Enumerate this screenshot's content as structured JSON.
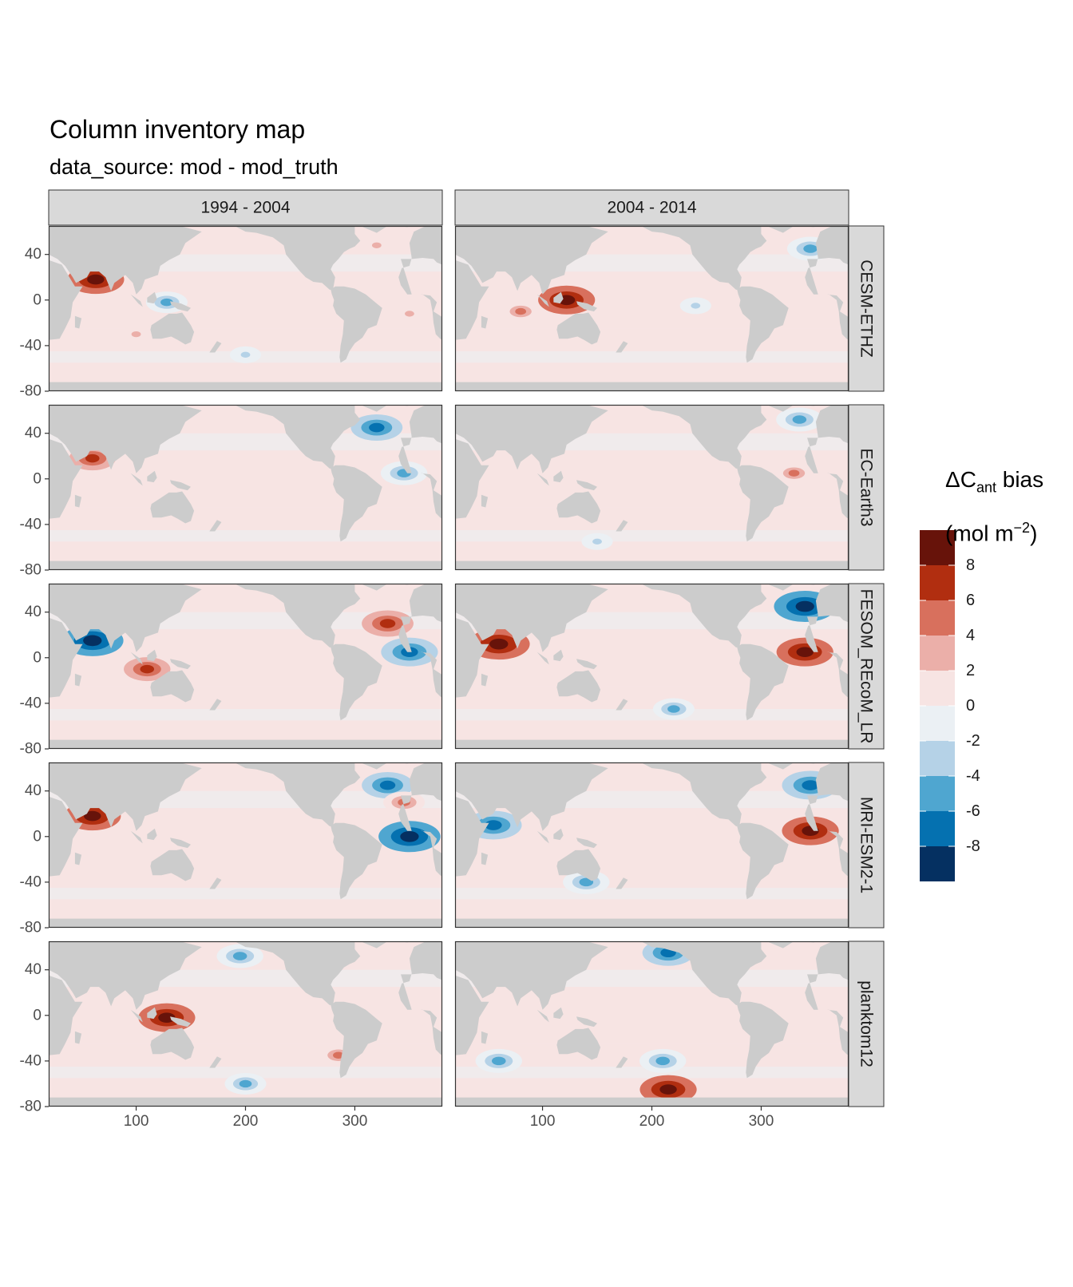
{
  "title": "Column inventory map",
  "subtitle": "data_source: mod - mod_truth",
  "columns": [
    "1994 - 2004",
    "2004 - 2014"
  ],
  "rows": [
    "CESM-ETHZ",
    "EC-Earth3",
    "FESOM_REcoM_LR",
    "MRI-ESM2-1",
    "planktom12"
  ],
  "colors": {
    "land": "#cccccc",
    "strip": "#d9d9d9",
    "scale": [
      "#053061",
      "#0571b0",
      "#4fa6d0",
      "#b5d2e7",
      "#ebf0f4",
      "#f7e4e3",
      "#ebafa9",
      "#d8705d",
      "#b12e10",
      "#67130a"
    ]
  },
  "legend": {
    "title_parts": [
      "ΔC",
      "ant",
      " bias",
      "(mol m",
      "−2",
      ")"
    ],
    "breaks": [
      -10,
      -8,
      -6,
      -4,
      -2,
      0,
      2,
      4,
      6,
      8,
      10
    ],
    "labels": [
      "8",
      "6",
      "4",
      "2",
      "0",
      "-2",
      "-4",
      "-6",
      "-8"
    ]
  },
  "chart_data": {
    "type": "heatmap",
    "title": "Column inventory map",
    "subtitle": "data_source: mod - mod_truth",
    "facet_cols": [
      "1994 - 2004",
      "2004 - 2014"
    ],
    "facet_rows": [
      "CESM-ETHZ",
      "EC-Earth3",
      "FESOM_REcoM_LR",
      "MRI-ESM2-1",
      "planktom12"
    ],
    "x_ticks": [
      100,
      200,
      300
    ],
    "y_ticks": [
      40,
      0,
      -40,
      -80
    ],
    "xlim": [
      20,
      380
    ],
    "ylim": [
      -80,
      65
    ],
    "value_range": [
      -10,
      10
    ],
    "hotspots": [
      {
        "row": "CESM-ETHZ",
        "col": "1994 - 2004",
        "lon": 63,
        "lat": 18,
        "value": 8
      },
      {
        "row": "CESM-ETHZ",
        "col": "1994 - 2004",
        "lon": 100,
        "lat": -30,
        "value": 3
      },
      {
        "row": "CESM-ETHZ",
        "col": "1994 - 2004",
        "lon": 128,
        "lat": -2,
        "value": -5
      },
      {
        "row": "CESM-ETHZ",
        "col": "1994 - 2004",
        "lon": 200,
        "lat": -48,
        "value": -3
      },
      {
        "row": "CESM-ETHZ",
        "col": "1994 - 2004",
        "lon": 320,
        "lat": 48,
        "value": 3
      },
      {
        "row": "CESM-ETHZ",
        "col": "1994 - 2004",
        "lon": 350,
        "lat": -12,
        "value": 3
      },
      {
        "row": "CESM-ETHZ",
        "col": "2004 - 2014",
        "lon": 80,
        "lat": -10,
        "value": 4
      },
      {
        "row": "CESM-ETHZ",
        "col": "2004 - 2014",
        "lon": 122,
        "lat": 0,
        "value": 8
      },
      {
        "row": "CESM-ETHZ",
        "col": "2004 - 2014",
        "lon": 345,
        "lat": 45,
        "value": -6
      },
      {
        "row": "CESM-ETHZ",
        "col": "2004 - 2014",
        "lon": 240,
        "lat": -5,
        "value": -3
      },
      {
        "row": "EC-Earth3",
        "col": "1994 - 2004",
        "lon": 60,
        "lat": 18,
        "value": 6
      },
      {
        "row": "EC-Earth3",
        "col": "1994 - 2004",
        "lon": 320,
        "lat": 45,
        "value": -7
      },
      {
        "row": "EC-Earth3",
        "col": "1994 - 2004",
        "lon": 345,
        "lat": 5,
        "value": -6
      },
      {
        "row": "EC-Earth3",
        "col": "2004 - 2014",
        "lon": 335,
        "lat": 52,
        "value": -6
      },
      {
        "row": "EC-Earth3",
        "col": "2004 - 2014",
        "lon": 330,
        "lat": 5,
        "value": 4
      },
      {
        "row": "EC-Earth3",
        "col": "2004 - 2014",
        "lon": 150,
        "lat": -55,
        "value": -3
      },
      {
        "row": "FESOM_REcoM_LR",
        "col": "1994 - 2004",
        "lon": 60,
        "lat": 15,
        "value": -9
      },
      {
        "row": "FESOM_REcoM_LR",
        "col": "1994 - 2004",
        "lon": 110,
        "lat": -10,
        "value": 6
      },
      {
        "row": "FESOM_REcoM_LR",
        "col": "1994 - 2004",
        "lon": 330,
        "lat": 30,
        "value": 7
      },
      {
        "row": "FESOM_REcoM_LR",
        "col": "1994 - 2004",
        "lon": 350,
        "lat": 5,
        "value": -8
      },
      {
        "row": "FESOM_REcoM_LR",
        "col": "2004 - 2014",
        "lon": 60,
        "lat": 12,
        "value": 9
      },
      {
        "row": "FESOM_REcoM_LR",
        "col": "2004 - 2014",
        "lon": 340,
        "lat": 45,
        "value": -9
      },
      {
        "row": "FESOM_REcoM_LR",
        "col": "2004 - 2014",
        "lon": 340,
        "lat": 5,
        "value": 8
      },
      {
        "row": "FESOM_REcoM_LR",
        "col": "2004 - 2014",
        "lon": 220,
        "lat": -45,
        "value": -5
      },
      {
        "row": "MRI-ESM2-1",
        "col": "1994 - 2004",
        "lon": 60,
        "lat": 18,
        "value": 8
      },
      {
        "row": "MRI-ESM2-1",
        "col": "1994 - 2004",
        "lon": 330,
        "lat": 45,
        "value": -7
      },
      {
        "row": "MRI-ESM2-1",
        "col": "1994 - 2004",
        "lon": 345,
        "lat": 30,
        "value": 5
      },
      {
        "row": "MRI-ESM2-1",
        "col": "1994 - 2004",
        "lon": 350,
        "lat": 0,
        "value": -9
      },
      {
        "row": "MRI-ESM2-1",
        "col": "2004 - 2014",
        "lon": 55,
        "lat": 10,
        "value": -8
      },
      {
        "row": "MRI-ESM2-1",
        "col": "2004 - 2014",
        "lon": 345,
        "lat": 45,
        "value": -8
      },
      {
        "row": "MRI-ESM2-1",
        "col": "2004 - 2014",
        "lon": 345,
        "lat": 5,
        "value": 8
      },
      {
        "row": "MRI-ESM2-1",
        "col": "2004 - 2014",
        "lon": 140,
        "lat": -40,
        "value": -6
      },
      {
        "row": "planktom12",
        "col": "1994 - 2004",
        "lon": 195,
        "lat": 52,
        "value": -6
      },
      {
        "row": "planktom12",
        "col": "1994 - 2004",
        "lon": 200,
        "lat": -60,
        "value": -5
      },
      {
        "row": "planktom12",
        "col": "1994 - 2004",
        "lon": 128,
        "lat": -2,
        "value": 8
      },
      {
        "row": "planktom12",
        "col": "1994 - 2004",
        "lon": 285,
        "lat": -35,
        "value": 4
      },
      {
        "row": "planktom12",
        "col": "2004 - 2014",
        "lon": 215,
        "lat": 55,
        "value": -7
      },
      {
        "row": "planktom12",
        "col": "2004 - 2014",
        "lon": 60,
        "lat": -40,
        "value": -6
      },
      {
        "row": "planktom12",
        "col": "2004 - 2014",
        "lon": 215,
        "lat": -65,
        "value": 8
      },
      {
        "row": "planktom12",
        "col": "2004 - 2014",
        "lon": 210,
        "lat": -40,
        "value": -6
      }
    ]
  }
}
